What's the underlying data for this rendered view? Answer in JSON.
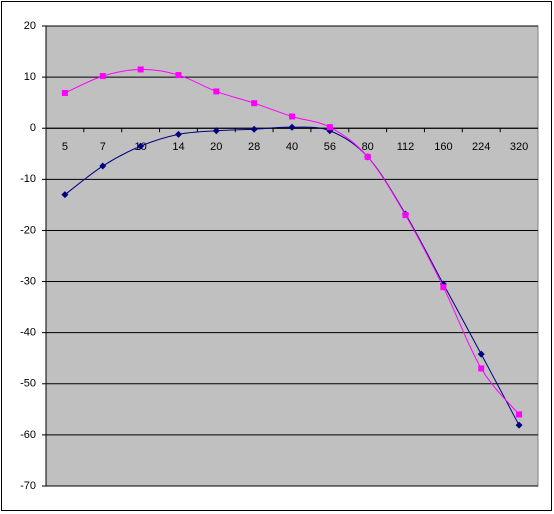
{
  "chart_data": {
    "type": "line",
    "categories": [
      "5",
      "7",
      "10",
      "14",
      "20",
      "28",
      "40",
      "56",
      "80",
      "112",
      "160",
      "224",
      "320"
    ],
    "series": [
      {
        "color": "#000080",
        "marker": "diamond",
        "values": [
          -13,
          -7.4,
          -3.5,
          -1.2,
          -0.5,
          -0.2,
          0.2,
          -0.5,
          -5.6,
          -16.8,
          -30.5,
          -44.2,
          -58.1
        ]
      },
      {
        "color": "#ff00ff",
        "marker": "square",
        "values": [
          6.9,
          10.2,
          11.5,
          10.4,
          7.2,
          4.9,
          2.3,
          0.2,
          -5.6,
          -17,
          -31.1,
          -47,
          -56
        ]
      }
    ],
    "ylim": [
      -70,
      20
    ],
    "yticks": [
      -70,
      -60,
      -50,
      -40,
      -30,
      -20,
      -10,
      0,
      10,
      20
    ],
    "grid": true,
    "smooth": true
  }
}
